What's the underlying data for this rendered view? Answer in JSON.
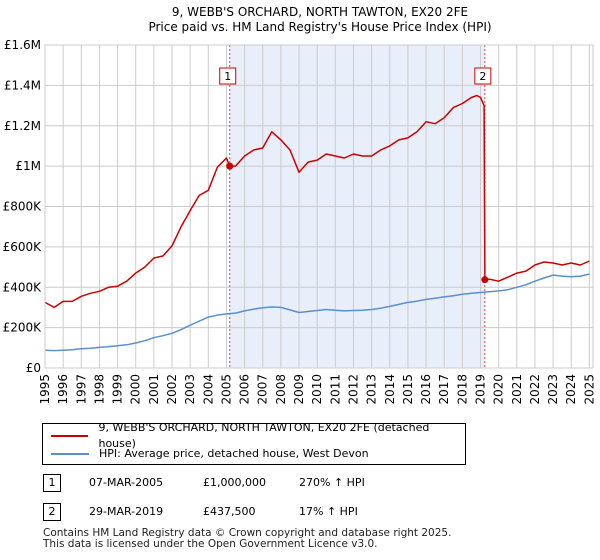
{
  "chart_data": {
    "type": "line",
    "title": "9, WEBB'S ORCHARD, NORTH TAWTON, EX20 2FE",
    "subtitle": "Price paid vs. HM Land Registry's House Price Index (HPI)",
    "xlabel": "",
    "ylabel": "",
    "xlim": [
      1995,
      2025.2
    ],
    "ylim": [
      0,
      1600000
    ],
    "y_ticks": [
      0,
      200000,
      400000,
      600000,
      800000,
      1000000,
      1200000,
      1400000,
      1600000
    ],
    "y_tick_labels": [
      "£0",
      "£200K",
      "£400K",
      "£600K",
      "£800K",
      "£1M",
      "£1.2M",
      "£1.4M",
      "£1.6M"
    ],
    "x_ticks": [
      1995,
      1996,
      1997,
      1998,
      1999,
      2000,
      2001,
      2002,
      2003,
      2004,
      2005,
      2006,
      2007,
      2008,
      2009,
      2010,
      2011,
      2012,
      2013,
      2014,
      2015,
      2016,
      2017,
      2018,
      2019,
      2020,
      2021,
      2022,
      2023,
      2024,
      2025
    ],
    "x_tick_labels": [
      "1995",
      "1996",
      "1997",
      "1998",
      "1999",
      "2000",
      "2001",
      "2002",
      "2003",
      "2004",
      "2005",
      "2006",
      "2007",
      "2008",
      "2009",
      "2010",
      "2011",
      "2012",
      "2013",
      "2014",
      "2015",
      "2016",
      "2017",
      "2018",
      "2019",
      "2020",
      "2021",
      "2022",
      "2023",
      "2024",
      "2025"
    ],
    "grid": true,
    "series": [
      {
        "name": "9, WEBB'S ORCHARD, NORTH TAWTON, EX20 2FE (detached house)",
        "color": "#cc0000",
        "x": [
          1995.0,
          1995.5,
          1996.0,
          1996.5,
          1997.0,
          1997.5,
          1998.0,
          1998.5,
          1999.0,
          1999.5,
          2000.0,
          2000.5,
          2001.0,
          2001.5,
          2002.0,
          2002.5,
          2003.0,
          2003.5,
          2004.0,
          2004.5,
          2005.0,
          2005.18,
          2005.5,
          2006.0,
          2006.5,
          2007.0,
          2007.5,
          2008.0,
          2008.5,
          2009.0,
          2009.5,
          2010.0,
          2010.5,
          2011.0,
          2011.5,
          2012.0,
          2012.5,
          2013.0,
          2013.5,
          2014.0,
          2014.5,
          2015.0,
          2015.5,
          2016.0,
          2016.5,
          2017.0,
          2017.5,
          2018.0,
          2018.5,
          2018.8,
          2019.0,
          2019.2,
          2019.24,
          2019.5,
          2020.0,
          2020.5,
          2021.0,
          2021.5,
          2022.0,
          2022.5,
          2023.0,
          2023.5,
          2024.0,
          2024.5,
          2025.0
        ],
        "y": [
          325000,
          300000,
          330000,
          330000,
          355000,
          370000,
          380000,
          400000,
          405000,
          430000,
          470000,
          500000,
          545000,
          555000,
          605000,
          700000,
          780000,
          855000,
          880000,
          995000,
          1040000,
          1000000,
          1000000,
          1050000,
          1080000,
          1090000,
          1170000,
          1130000,
          1080000,
          970000,
          1020000,
          1030000,
          1060000,
          1050000,
          1040000,
          1060000,
          1050000,
          1050000,
          1080000,
          1100000,
          1130000,
          1140000,
          1170000,
          1220000,
          1210000,
          1240000,
          1290000,
          1310000,
          1340000,
          1350000,
          1340000,
          1300000,
          437500,
          440000,
          430000,
          450000,
          470000,
          480000,
          510000,
          525000,
          520000,
          510000,
          520000,
          510000,
          530000
        ]
      },
      {
        "name": "HPI: Average price, detached house, West Devon",
        "color": "#5b8fd0",
        "x": [
          1995.0,
          1995.5,
          1996.0,
          1996.5,
          1997.0,
          1997.5,
          1998.0,
          1998.5,
          1999.0,
          1999.5,
          2000.0,
          2000.5,
          2001.0,
          2001.5,
          2002.0,
          2002.5,
          2003.0,
          2003.5,
          2004.0,
          2004.5,
          2005.0,
          2005.5,
          2006.0,
          2006.5,
          2007.0,
          2007.5,
          2008.0,
          2008.5,
          2009.0,
          2009.5,
          2010.0,
          2010.5,
          2011.0,
          2011.5,
          2012.0,
          2012.5,
          2013.0,
          2013.5,
          2014.0,
          2014.5,
          2015.0,
          2015.5,
          2016.0,
          2016.5,
          2017.0,
          2017.5,
          2018.0,
          2018.5,
          2019.0,
          2019.5,
          2020.0,
          2020.5,
          2021.0,
          2021.5,
          2022.0,
          2022.5,
          2023.0,
          2023.5,
          2024.0,
          2024.5,
          2025.0
        ],
        "y": [
          88000,
          86000,
          88000,
          90000,
          95000,
          98000,
          102000,
          106000,
          110000,
          115000,
          124000,
          135000,
          150000,
          160000,
          172000,
          190000,
          212000,
          232000,
          252000,
          262000,
          268000,
          272000,
          283000,
          292000,
          298000,
          302000,
          300000,
          288000,
          275000,
          280000,
          285000,
          290000,
          286000,
          283000,
          285000,
          286000,
          290000,
          296000,
          305000,
          315000,
          325000,
          331000,
          340000,
          346000,
          352000,
          358000,
          365000,
          370000,
          374000,
          378000,
          382000,
          388000,
          400000,
          412000,
          430000,
          446000,
          460000,
          455000,
          452000,
          455000,
          465000
        ]
      }
    ],
    "markers": [
      {
        "label": "1",
        "x": 2005.18,
        "y": 1000000
      },
      {
        "label": "2",
        "x": 2019.24,
        "y": 437500
      }
    ],
    "legend_position": "bottom"
  },
  "legend": {
    "items": [
      {
        "label": "9, WEBB'S ORCHARD, NORTH TAWTON, EX20 2FE (detached house)",
        "color": "#cc0000"
      },
      {
        "label": "HPI: Average price, detached house, West Devon",
        "color": "#5b8fd0"
      }
    ]
  },
  "transactions": [
    {
      "num": "1",
      "date": "07-MAR-2005",
      "price": "£1,000,000",
      "hpi": "270% ↑ HPI"
    },
    {
      "num": "2",
      "date": "29-MAR-2019",
      "price": "£437,500",
      "hpi": "17% ↑ HPI"
    }
  ],
  "footer": {
    "line1": "Contains HM Land Registry data © Crown copyright and database right 2025.",
    "line2": "This data is licensed under the Open Government Licence v3.0."
  }
}
